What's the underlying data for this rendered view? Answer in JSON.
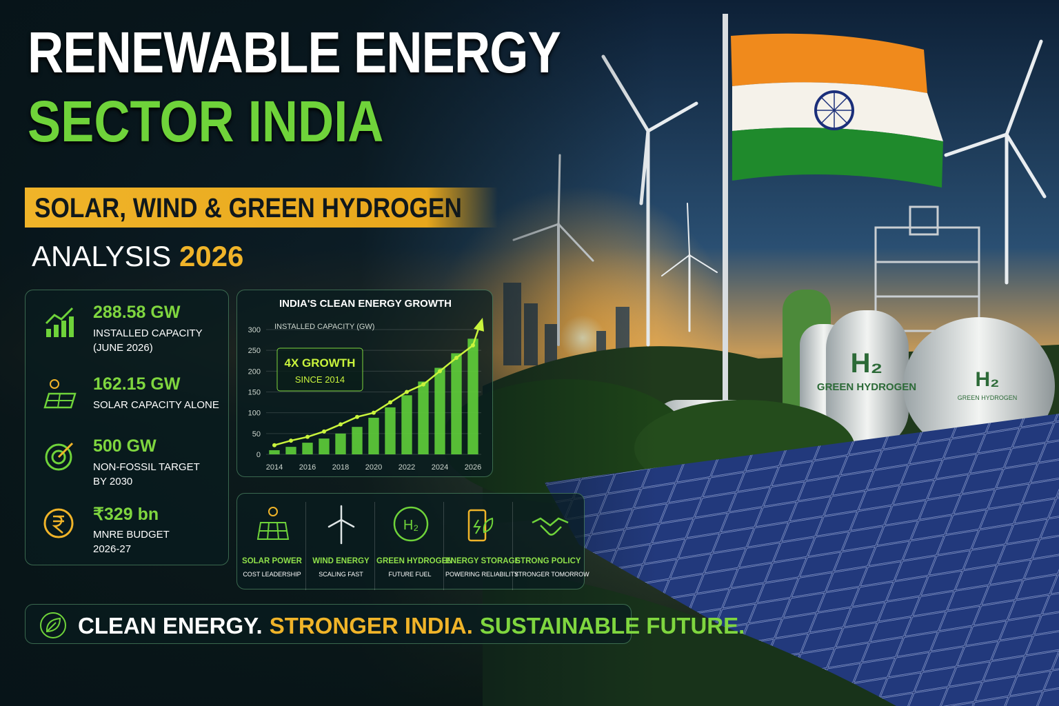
{
  "header": {
    "title_line1": "RENEWABLE ENERGY",
    "title_line2": "SECTOR INDIA",
    "banner": "SOLAR, WIND & GREEN HYDROGEN",
    "analysis": "ANALYSIS",
    "year": "2026"
  },
  "stats": [
    {
      "value": "288.58 GW",
      "lines": [
        "INSTALLED CAPACITY",
        "(JUNE 2026)"
      ]
    },
    {
      "value": "162.15 GW",
      "lines": [
        "SOLAR CAPACITY ALONE"
      ]
    },
    {
      "value": "500 GW",
      "lines": [
        "NON-FOSSIL TARGET",
        "BY 2030"
      ]
    },
    {
      "value": "₹329 bn",
      "lines": [
        "MNRE BUDGET",
        "2026-27"
      ]
    }
  ],
  "chart_data": {
    "type": "bar",
    "title": "INDIA'S CLEAN ENERGY GROWTH",
    "y_label": "INSTALLED CAPACITY (GW)",
    "annotation": [
      "4X GROWTH",
      "SINCE 2014"
    ],
    "categories": [
      "2014",
      null,
      "2016",
      null,
      "2018",
      null,
      "2020",
      null,
      "2022",
      null,
      "2024",
      null,
      "2026"
    ],
    "series": [
      {
        "type": "bar",
        "color": "#5fcf3a",
        "values": [
          10,
          18,
          28,
          38,
          50,
          66,
          88,
          113,
          142,
          175,
          208,
          243,
          278
        ]
      },
      {
        "type": "line",
        "color": "#c9f43c",
        "values": [
          22,
          33,
          42,
          55,
          72,
          90,
          100,
          125,
          150,
          168,
          200,
          232,
          262
        ]
      }
    ],
    "ylim": [
      0,
      300
    ],
    "yticks": [
      0,
      50,
      100,
      150,
      200,
      250,
      300
    ],
    "grid": true
  },
  "pillars": [
    {
      "title": "SOLAR POWER",
      "subtitle": "COST LEADERSHIP"
    },
    {
      "title": "WIND ENERGY",
      "subtitle": "SCALING FAST"
    },
    {
      "title": "GREEN HYDROGEN",
      "subtitle": "FUTURE FUEL",
      "icon_text": "H₂"
    },
    {
      "title": "ENERGY STORAGE",
      "subtitle": "POWERING RELIABILITY"
    },
    {
      "title": "STRONG POLICY",
      "subtitle": "STRONGER TOMORROW"
    }
  ],
  "tagline": [
    "CLEAN ENERGY.",
    "STRONGER INDIA.",
    "SUSTAINABLE FUTURE."
  ],
  "scene": {
    "tanks": [
      {
        "symbol": "H₂",
        "label": "GREEN HYDROGEN"
      },
      {
        "symbol": "H₂",
        "label": "GREEN HYDROGEN"
      }
    ]
  }
}
